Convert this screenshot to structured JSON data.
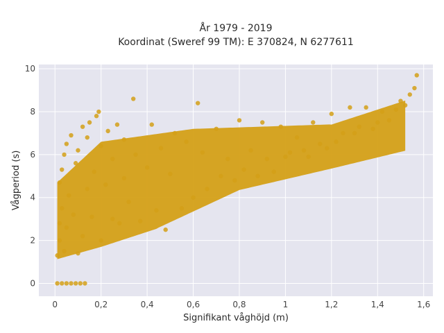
{
  "chart_data": {
    "type": "scatter",
    "title_line1": "År 1979 - 2019",
    "title_line2": "Koordinat (Sweref 99 TM): E 370824, N 6277611",
    "xlabel": "Signifikant våghöjd (m)",
    "ylabel": "Vågperiod (s)",
    "xlim": [
      -0.07,
      1.64
    ],
    "ylim": [
      -0.6,
      10.2
    ],
    "x_ticks": [
      0,
      0.2,
      0.4,
      0.6,
      0.8,
      1,
      1.2,
      1.4,
      1.6
    ],
    "x_tick_labels": [
      "0",
      "0,2",
      "0,4",
      "0,6",
      "0,8",
      "1",
      "1,2",
      "1,4",
      "1,6"
    ],
    "y_ticks": [
      0,
      2,
      4,
      6,
      8,
      10
    ],
    "y_tick_labels": [
      "0",
      "2",
      "4",
      "6",
      "8",
      "10"
    ],
    "grid": true,
    "marker_color": "#D4A017",
    "plot_bg": "#E5E5EF",
    "points": [
      [
        0.01,
        0.0
      ],
      [
        0.03,
        0.0
      ],
      [
        0.05,
        0.0
      ],
      [
        0.07,
        0.0
      ],
      [
        0.09,
        0.0
      ],
      [
        0.11,
        0.0
      ],
      [
        0.13,
        0.0
      ],
      [
        0.01,
        1.3
      ],
      [
        0.02,
        2.0
      ],
      [
        0.02,
        2.8
      ],
      [
        0.02,
        4.7
      ],
      [
        0.03,
        3.5
      ],
      [
        0.03,
        5.3
      ],
      [
        0.04,
        1.5
      ],
      [
        0.04,
        6.0
      ],
      [
        0.05,
        6.5
      ],
      [
        0.05,
        2.6
      ],
      [
        0.06,
        4.1
      ],
      [
        0.07,
        6.9
      ],
      [
        0.08,
        3.2
      ],
      [
        0.09,
        5.6
      ],
      [
        0.1,
        1.4
      ],
      [
        0.1,
        6.2
      ],
      [
        0.12,
        2.2
      ],
      [
        0.12,
        7.3
      ],
      [
        0.14,
        4.4
      ],
      [
        0.14,
        6.8
      ],
      [
        0.15,
        7.5
      ],
      [
        0.16,
        3.1
      ],
      [
        0.17,
        5.2
      ],
      [
        0.18,
        7.8
      ],
      [
        0.19,
        8.0
      ],
      [
        0.2,
        2.0
      ],
      [
        0.2,
        6.4
      ],
      [
        0.22,
        4.6
      ],
      [
        0.23,
        7.1
      ],
      [
        0.25,
        3.0
      ],
      [
        0.25,
        5.8
      ],
      [
        0.27,
        7.4
      ],
      [
        0.28,
        2.8
      ],
      [
        0.3,
        4.9
      ],
      [
        0.3,
        6.7
      ],
      [
        0.32,
        3.8
      ],
      [
        0.34,
        8.6
      ],
      [
        0.35,
        6.0
      ],
      [
        0.37,
        2.9
      ],
      [
        0.4,
        5.4
      ],
      [
        0.42,
        7.4
      ],
      [
        0.44,
        3.4
      ],
      [
        0.46,
        6.3
      ],
      [
        0.48,
        2.5
      ],
      [
        0.5,
        5.1
      ],
      [
        0.52,
        7.0
      ],
      [
        0.55,
        3.5
      ],
      [
        0.57,
        6.6
      ],
      [
        0.6,
        4.0
      ],
      [
        0.62,
        8.4
      ],
      [
        0.64,
        6.1
      ],
      [
        0.66,
        4.4
      ],
      [
        0.7,
        7.2
      ],
      [
        0.72,
        5.0
      ],
      [
        0.75,
        5.8
      ],
      [
        0.78,
        4.8
      ],
      [
        0.8,
        7.6
      ],
      [
        0.82,
        5.3
      ],
      [
        0.85,
        6.2
      ],
      [
        0.88,
        5.0
      ],
      [
        0.9,
        7.5
      ],
      [
        0.92,
        5.8
      ],
      [
        0.95,
        5.2
      ],
      [
        0.98,
        7.3
      ],
      [
        1.0,
        5.9
      ],
      [
        1.02,
        6.1
      ],
      [
        1.05,
        6.8
      ],
      [
        1.08,
        6.2
      ],
      [
        1.1,
        5.9
      ],
      [
        1.12,
        7.5
      ],
      [
        1.15,
        6.5
      ],
      [
        1.18,
        6.3
      ],
      [
        1.2,
        7.9
      ],
      [
        1.22,
        6.6
      ],
      [
        1.25,
        7.0
      ],
      [
        1.28,
        8.2
      ],
      [
        1.3,
        7.0
      ],
      [
        1.32,
        7.3
      ],
      [
        1.35,
        8.2
      ],
      [
        1.38,
        7.2
      ],
      [
        1.4,
        7.5
      ],
      [
        1.42,
        8.0
      ],
      [
        1.45,
        7.6
      ],
      [
        1.48,
        8.1
      ],
      [
        1.5,
        8.5
      ],
      [
        1.52,
        8.3
      ],
      [
        1.54,
        8.8
      ],
      [
        1.56,
        9.1
      ],
      [
        1.57,
        9.7
      ]
    ]
  }
}
